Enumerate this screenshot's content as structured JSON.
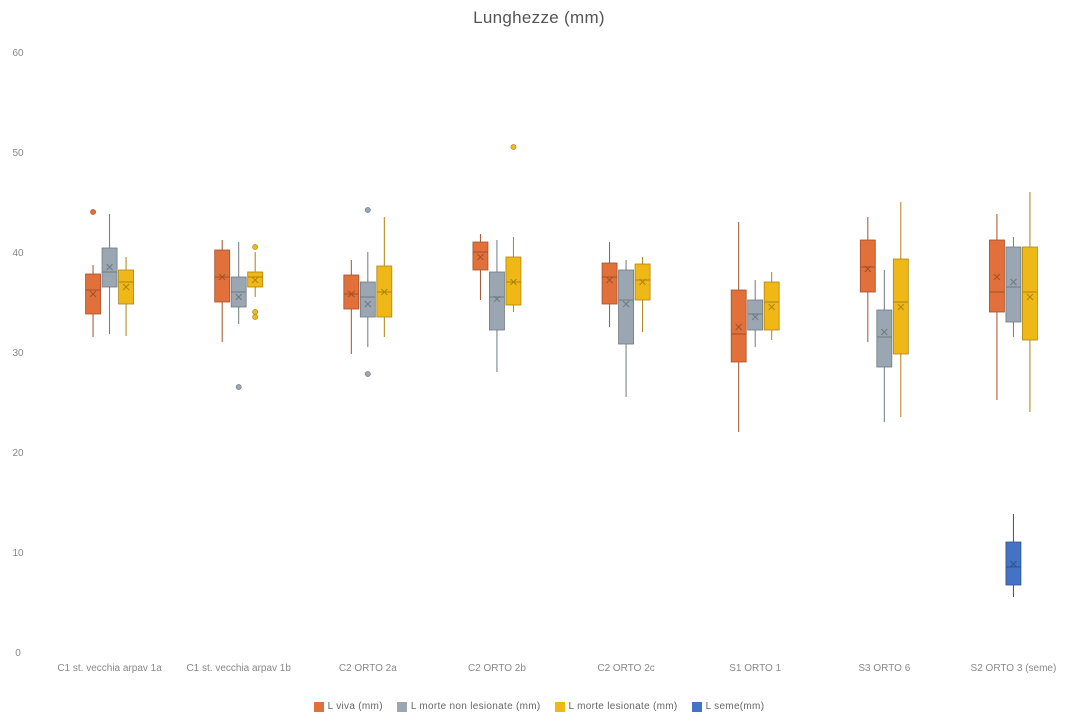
{
  "chart_data": {
    "type": "box",
    "title": "Lunghezze (mm)",
    "xlabel": "",
    "ylabel": "",
    "ylim": [
      0,
      60
    ],
    "yticks": [
      0,
      10,
      20,
      30,
      40,
      50,
      60
    ],
    "grid": false,
    "legend_position": "bottom",
    "categories": [
      "C1 st. vecchia arpav 1a",
      "C1 st. vecchia arpav 1b",
      "C2 ORTO 2a",
      "C2 ORTO 2b",
      "C2 ORTO 2c",
      "S1 ORTO 1",
      "S3 ORTO 6",
      "S2 ORTO 3 (seme)"
    ],
    "series": [
      {
        "name": "L viva (mm)",
        "color": "#E2703A",
        "boxes": [
          {
            "category": 0,
            "min": 31.5,
            "q1": 33.8,
            "median": 36.2,
            "q3": 37.8,
            "max": 38.7,
            "mean": 35.8,
            "outliers": [
              44
            ]
          },
          {
            "category": 1,
            "min": 31,
            "q1": 35,
            "median": 37.5,
            "q3": 40.2,
            "max": 41.2,
            "mean": 37.5,
            "outliers": []
          },
          {
            "category": 2,
            "min": 29.8,
            "q1": 34.3,
            "median": 35.8,
            "q3": 37.7,
            "max": 39.2,
            "mean": 35.8,
            "outliers": []
          },
          {
            "category": 3,
            "min": 35.2,
            "q1": 38.2,
            "median": 40,
            "q3": 41,
            "max": 41.8,
            "mean": 39.5,
            "outliers": []
          },
          {
            "category": 4,
            "min": 32.5,
            "q1": 34.8,
            "median": 37.5,
            "q3": 38.9,
            "max": 41,
            "mean": 37.2,
            "outliers": []
          },
          {
            "category": 5,
            "min": 22,
            "q1": 29,
            "median": 31.8,
            "q3": 36.2,
            "max": 43,
            "mean": 32.5,
            "outliers": []
          },
          {
            "category": 6,
            "min": 31,
            "q1": 36,
            "median": 38.5,
            "q3": 41.2,
            "max": 43.5,
            "mean": 38.3,
            "outliers": []
          },
          {
            "category": 7,
            "min": 25.2,
            "q1": 34,
            "median": 36,
            "q3": 41.2,
            "max": 43.8,
            "mean": 37.5,
            "outliers": []
          }
        ]
      },
      {
        "name": "L morte non lesionate (mm)",
        "color": "#9AA7B3",
        "boxes": [
          {
            "category": 0,
            "min": 31.8,
            "q1": 36.5,
            "median": 38,
            "q3": 40.4,
            "max": 43.8,
            "mean": 38.5,
            "outliers": []
          },
          {
            "category": 1,
            "min": 32.8,
            "q1": 34.5,
            "median": 36,
            "q3": 37.5,
            "max": 41,
            "mean": 35.5,
            "outliers": [
              26.5
            ]
          },
          {
            "category": 2,
            "min": 30.5,
            "q1": 33.5,
            "median": 35.5,
            "q3": 37,
            "max": 40,
            "mean": 34.8,
            "outliers": [
              44.2,
              27.8
            ]
          },
          {
            "category": 3,
            "min": 28,
            "q1": 32.2,
            "median": 35.5,
            "q3": 38,
            "max": 41.2,
            "mean": 35.3,
            "outliers": []
          },
          {
            "category": 4,
            "min": 25.5,
            "q1": 30.8,
            "median": 35.2,
            "q3": 38.2,
            "max": 39.2,
            "mean": 34.8,
            "outliers": []
          },
          {
            "category": 5,
            "min": 30.5,
            "q1": 32.2,
            "median": 33.8,
            "q3": 35.2,
            "max": 37.2,
            "mean": 33.5,
            "outliers": []
          },
          {
            "category": 6,
            "min": 23,
            "q1": 28.5,
            "median": 31.5,
            "q3": 34.2,
            "max": 38.2,
            "mean": 32,
            "outliers": []
          },
          {
            "category": 7,
            "min": 31.5,
            "q1": 33,
            "median": 36.5,
            "q3": 40.5,
            "max": 41.5,
            "mean": 37,
            "outliers": []
          }
        ]
      },
      {
        "name": "L morte lesionate (mm)",
        "color": "#F0B816",
        "boxes": [
          {
            "category": 0,
            "min": 31.6,
            "q1": 34.8,
            "median": 37,
            "q3": 38.2,
            "max": 39.5,
            "mean": 36.5,
            "outliers": []
          },
          {
            "category": 1,
            "min": 35.5,
            "q1": 36.5,
            "median": 37.5,
            "q3": 38,
            "max": 40,
            "mean": 37.2,
            "outliers": [
              40.5,
              34,
              33.5
            ]
          },
          {
            "category": 2,
            "min": 31.5,
            "q1": 33.5,
            "median": 36,
            "q3": 38.6,
            "max": 43.5,
            "mean": 36,
            "outliers": []
          },
          {
            "category": 3,
            "min": 34,
            "q1": 34.7,
            "median": 37,
            "q3": 39.5,
            "max": 41.5,
            "mean": 37,
            "outliers": [
              50.5
            ]
          },
          {
            "category": 4,
            "min": 32,
            "q1": 35.2,
            "median": 37.2,
            "q3": 38.8,
            "max": 39.5,
            "mean": 37,
            "outliers": []
          },
          {
            "category": 5,
            "min": 31.2,
            "q1": 32.2,
            "median": 35,
            "q3": 37,
            "max": 38,
            "mean": 34.5,
            "outliers": []
          },
          {
            "category": 6,
            "min": 23.5,
            "q1": 29.8,
            "median": 35,
            "q3": 39.3,
            "max": 45,
            "mean": 34.5,
            "outliers": []
          },
          {
            "category": 7,
            "min": 24,
            "q1": 31.2,
            "median": 36,
            "q3": 40.5,
            "max": 46,
            "mean": 35.5,
            "outliers": []
          }
        ]
      },
      {
        "name": "L seme(mm)",
        "color": "#4472C4",
        "boxes": [
          {
            "category": 7,
            "min": 5.5,
            "q1": 6.7,
            "median": 8.5,
            "q3": 11,
            "max": 13.8,
            "mean": 8.8,
            "outliers": []
          }
        ]
      }
    ]
  }
}
